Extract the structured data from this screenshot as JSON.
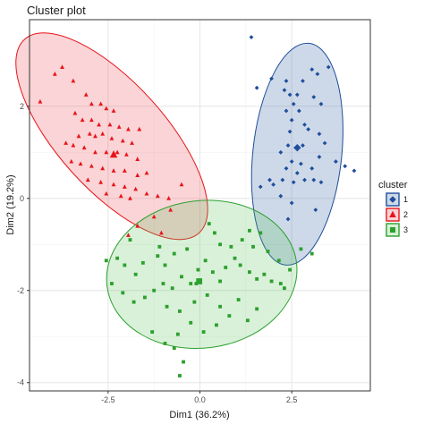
{
  "chart_data": {
    "type": "scatter",
    "title": "Cluster plot",
    "xlabel": "Dim1 (36.2%)",
    "ylabel": "Dim2 (19.2%)",
    "xlim": [
      -4.64,
      4.64
    ],
    "ylim": [
      -4.18,
      3.88
    ],
    "xticks": [
      -2.5,
      0.0,
      2.5
    ],
    "xtick_labels": [
      "-2.5",
      "0.0",
      "2.5"
    ],
    "yticks": [
      -4,
      -2,
      0,
      2
    ],
    "ytick_labels": [
      "-4",
      "-2",
      "0",
      "2"
    ],
    "grid": true,
    "legend": {
      "title": "cluster",
      "position": "right"
    },
    "series": [
      {
        "name": "1",
        "marker": "diamond",
        "color": "#1F4E9A",
        "fill": "rgba(60,110,170,0.26)",
        "centroid": [
          2.65,
          1.1
        ],
        "ellipse": {
          "cx": 2.65,
          "cy": 0.96,
          "rx": 1.21,
          "ry": 2.42,
          "angle": 6
        },
        "points": [
          [
            1.55,
            2.4
          ],
          [
            1.95,
            2.6
          ],
          [
            2.35,
            2.55
          ],
          [
            2.8,
            2.55
          ],
          [
            3.05,
            2.8
          ],
          [
            3.2,
            2.7
          ],
          [
            3.5,
            2.85
          ],
          [
            2.3,
            2.35
          ],
          [
            2.45,
            2.25
          ],
          [
            2.65,
            2.25
          ],
          [
            3.1,
            2.2
          ],
          [
            3.3,
            2.05
          ],
          [
            2.55,
            2.05
          ],
          [
            2.35,
            1.9
          ],
          [
            2.7,
            1.9
          ],
          [
            2.85,
            1.6
          ],
          [
            2.5,
            1.7
          ],
          [
            2.95,
            1.5
          ],
          [
            3.25,
            1.4
          ],
          [
            2.45,
            1.45
          ],
          [
            3.4,
            1.2
          ],
          [
            2.8,
            1.15
          ],
          [
            2.4,
            1.15
          ],
          [
            2.2,
            1.0
          ],
          [
            3.25,
            0.9
          ],
          [
            2.5,
            0.8
          ],
          [
            2.75,
            0.75
          ],
          [
            3.7,
            0.8
          ],
          [
            3.95,
            0.7
          ],
          [
            4.2,
            0.6
          ],
          [
            2.35,
            0.65
          ],
          [
            3.05,
            0.65
          ],
          [
            2.65,
            0.55
          ],
          [
            2.85,
            0.4
          ],
          [
            3.1,
            0.4
          ],
          [
            2.25,
            0.4
          ],
          [
            2.55,
            0.35
          ],
          [
            3.3,
            0.35
          ],
          [
            2.0,
            0.3
          ],
          [
            1.9,
            0.4
          ],
          [
            1.65,
            0.25
          ],
          [
            2.5,
            -0.1
          ],
          [
            3.15,
            -0.25
          ],
          [
            2.4,
            -0.45
          ],
          [
            2.2,
            0.05
          ],
          [
            1.4,
            3.5
          ]
        ]
      },
      {
        "name": "2",
        "marker": "triangle",
        "color": "#E8141A",
        "fill": "rgba(230,60,70,0.22)",
        "centroid": [
          -2.35,
          0.95
        ],
        "ellipse": {
          "cx": -2.4,
          "cy": 1.35,
          "rx": 1.46,
          "ry": 2.83,
          "angle": -42
        },
        "points": [
          [
            -3.95,
            2.7
          ],
          [
            -4.35,
            2.1
          ],
          [
            -3.75,
            2.85
          ],
          [
            -3.45,
            2.55
          ],
          [
            -3.1,
            2.25
          ],
          [
            -2.95,
            2.05
          ],
          [
            -2.7,
            2.05
          ],
          [
            -2.55,
            1.95
          ],
          [
            -2.35,
            1.9
          ],
          [
            -3.4,
            1.85
          ],
          [
            -3.2,
            1.7
          ],
          [
            -2.95,
            1.7
          ],
          [
            -2.75,
            1.6
          ],
          [
            -2.45,
            1.6
          ],
          [
            -2.2,
            1.55
          ],
          [
            -1.95,
            1.5
          ],
          [
            -1.65,
            1.5
          ],
          [
            -2.65,
            1.4
          ],
          [
            -3.0,
            1.4
          ],
          [
            -3.3,
            1.35
          ],
          [
            -2.4,
            1.3
          ],
          [
            -2.1,
            1.25
          ],
          [
            -1.85,
            1.2
          ],
          [
            -3.65,
            1.2
          ],
          [
            -3.45,
            1.15
          ],
          [
            -3.15,
            1.1
          ],
          [
            -2.85,
            1.0
          ],
          [
            -2.55,
            1.0
          ],
          [
            -2.25,
            1.0
          ],
          [
            -2.0,
            0.95
          ],
          [
            -1.7,
            0.85
          ],
          [
            -3.5,
            0.8
          ],
          [
            -3.25,
            0.75
          ],
          [
            -2.95,
            0.7
          ],
          [
            -2.65,
            0.65
          ],
          [
            -2.35,
            0.6
          ],
          [
            -2.05,
            0.6
          ],
          [
            -1.7,
            0.5
          ],
          [
            -1.45,
            0.55
          ],
          [
            -3.05,
            0.4
          ],
          [
            -2.7,
            0.35
          ],
          [
            -2.35,
            0.3
          ],
          [
            -2.05,
            0.25
          ],
          [
            -1.75,
            0.2
          ],
          [
            -1.45,
            0.1
          ],
          [
            -1.15,
            0.05
          ],
          [
            -0.85,
            0.0
          ],
          [
            -0.5,
            0.3
          ],
          [
            -2.55,
            0.1
          ],
          [
            -2.15,
            0.05
          ],
          [
            -1.9,
            0.0
          ],
          [
            -1.25,
            -0.4
          ],
          [
            -1.7,
            -0.6
          ],
          [
            -1.05,
            -0.75
          ],
          [
            -1.95,
            -0.8
          ],
          [
            -2.85,
            1.35
          ],
          [
            -0.8,
            -0.25
          ]
        ]
      },
      {
        "name": "3",
        "marker": "square",
        "color": "#2DA02E",
        "fill": "rgba(80,190,80,0.22)",
        "centroid": [
          -0.02,
          -1.8
        ],
        "ellipse": {
          "cx": 0.05,
          "cy": -1.65,
          "rx": 2.6,
          "ry": 1.6,
          "angle": -7
        },
        "points": [
          [
            -1.9,
            -0.9
          ],
          [
            -2.55,
            -1.35
          ],
          [
            -2.25,
            -1.3
          ],
          [
            -2.05,
            -1.45
          ],
          [
            -1.75,
            -1.65
          ],
          [
            -1.55,
            -1.4
          ],
          [
            -1.15,
            -1.25
          ],
          [
            -0.95,
            -1.45
          ],
          [
            -0.7,
            -1.2
          ],
          [
            -0.35,
            -1.1
          ],
          [
            0.25,
            -0.55
          ],
          [
            0.4,
            -0.75
          ],
          [
            0.55,
            -1.0
          ],
          [
            0.85,
            -1.05
          ],
          [
            1.15,
            -0.9
          ],
          [
            1.35,
            -0.7
          ],
          [
            1.65,
            -0.75
          ],
          [
            1.85,
            -1.15
          ],
          [
            2.15,
            -1.35
          ],
          [
            2.45,
            -1.55
          ],
          [
            2.3,
            -1.95
          ],
          [
            2.2,
            -1.85
          ],
          [
            1.95,
            -1.8
          ],
          [
            1.75,
            -1.65
          ],
          [
            1.55,
            -1.75
          ],
          [
            1.35,
            -1.6
          ],
          [
            1.1,
            -1.45
          ],
          [
            0.95,
            -1.3
          ],
          [
            0.7,
            -1.5
          ],
          [
            0.55,
            -1.8
          ],
          [
            0.35,
            -1.6
          ],
          [
            0.15,
            -1.35
          ],
          [
            -0.05,
            -1.55
          ],
          [
            -0.25,
            -1.85
          ],
          [
            -0.5,
            -1.7
          ],
          [
            -0.75,
            -1.95
          ],
          [
            -1.0,
            -1.85
          ],
          [
            -1.25,
            -2.0
          ],
          [
            -1.5,
            -2.15
          ],
          [
            -1.8,
            -2.25
          ],
          [
            -2.1,
            -2.05
          ],
          [
            -2.4,
            -1.85
          ],
          [
            -0.9,
            -2.35
          ],
          [
            -0.55,
            -2.45
          ],
          [
            -0.15,
            -2.25
          ],
          [
            0.2,
            -2.1
          ],
          [
            0.55,
            -2.35
          ],
          [
            0.8,
            -2.55
          ],
          [
            1.05,
            -2.2
          ],
          [
            1.3,
            -2.65
          ],
          [
            1.55,
            -2.4
          ],
          [
            0.45,
            -2.75
          ],
          [
            0.1,
            -2.9
          ],
          [
            -0.25,
            -2.7
          ],
          [
            -0.6,
            -2.95
          ],
          [
            -0.95,
            -3.15
          ],
          [
            -1.3,
            -2.9
          ],
          [
            -0.45,
            -3.55
          ],
          [
            -0.7,
            -3.25
          ],
          [
            -0.55,
            -3.85
          ],
          [
            2.75,
            -1.1
          ],
          [
            3.05,
            -1.2
          ],
          [
            -1.1,
            -1.05
          ],
          [
            1.45,
            -1.05
          ],
          [
            -0.1,
            -1.85
          ]
        ]
      }
    ]
  },
  "colors": {
    "panel_background": "#ffffff",
    "grid_major": "#e6e6e6",
    "grid_minor": "#f2f2f2",
    "axis_line": "#333333"
  }
}
